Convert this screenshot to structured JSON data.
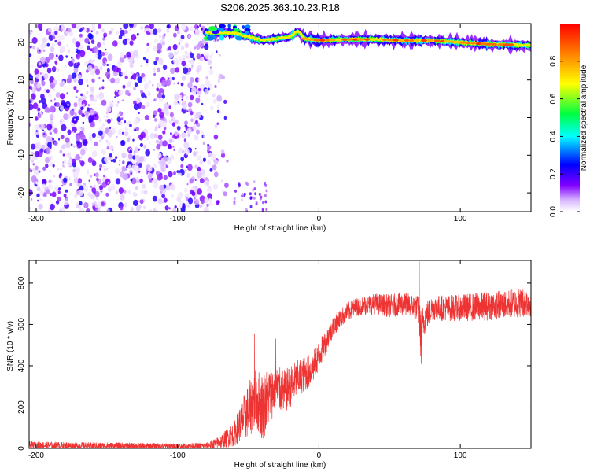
{
  "title": "S206.2025.363.10.23.R18",
  "chart_data": [
    {
      "type": "heatmap",
      "title": "S206.2025.363.10.23.R18",
      "xlabel": "Height of straight line (km)",
      "ylabel": "Frequency (Hz)",
      "xlim": [
        -205,
        150
      ],
      "ylim": [
        -25,
        25
      ],
      "x_ticks": [
        -200,
        -100,
        0,
        100
      ],
      "y_ticks": [
        -20,
        -10,
        0,
        10,
        20
      ],
      "colorbar": {
        "label": "Normalized spectral amplitude",
        "range": [
          0,
          1
        ],
        "ticks": [
          "0.0",
          "0.2",
          "0.4",
          "0.6",
          "0.8"
        ],
        "colormap": [
          "#ffffff",
          "#7f00ff",
          "#0000ff",
          "#00ffff",
          "#00ff00",
          "#ffff00",
          "#ff8000",
          "#ff0000"
        ]
      },
      "features": {
        "noise_region_x": [
          -205,
          -75
        ],
        "carrier_line": {
          "x": [
            -80,
            -70,
            -60,
            -50,
            -40,
            -30,
            -20,
            -15,
            -10,
            0,
            20,
            40,
            60,
            80,
            100,
            120,
            150
          ],
          "freq": [
            22.5,
            22.5,
            22.5,
            21.5,
            20.5,
            21.0,
            21.5,
            23.0,
            21.0,
            20.5,
            20.8,
            20.8,
            20.5,
            20.5,
            20.0,
            19.5,
            19.2
          ],
          "peak_amplitude": 0.95
        }
      }
    },
    {
      "type": "line",
      "xlabel": "Height of straight line (km)",
      "ylabel": "SNR (10 * v/v)",
      "xlim": [
        -205,
        150
      ],
      "ylim": [
        0,
        910
      ],
      "x_ticks": [
        -200,
        -100,
        0,
        100
      ],
      "y_ticks": [
        0,
        200,
        400,
        600,
        800
      ],
      "color": "#ee3333",
      "envelope": {
        "x": [
          -205,
          -150,
          -100,
          -80,
          -70,
          -60,
          -55,
          -50,
          -45,
          -40,
          -35,
          -30,
          -25,
          -20,
          -15,
          -10,
          -5,
          0,
          5,
          10,
          15,
          20,
          25,
          30,
          40,
          50,
          60,
          70,
          72,
          74,
          80,
          100,
          120,
          150
        ],
        "mean": [
          15,
          12,
          10,
          12,
          30,
          70,
          130,
          180,
          240,
          200,
          260,
          290,
          270,
          300,
          340,
          360,
          380,
          450,
          520,
          590,
          630,
          660,
          680,
          690,
          700,
          690,
          700,
          680,
          560,
          620,
          680,
          680,
          690,
          710
        ],
        "spread": [
          18,
          16,
          14,
          15,
          30,
          60,
          90,
          130,
          150,
          170,
          140,
          110,
          110,
          100,
          90,
          85,
          80,
          70,
          60,
          50,
          45,
          45,
          45,
          45,
          50,
          55,
          55,
          60,
          120,
          80,
          60,
          65,
          70,
          70
        ]
      },
      "spikes": [
        {
          "x": -45.5,
          "y": 555
        },
        {
          "x": -30.5,
          "y": 530
        },
        {
          "x": 71,
          "y": 905
        },
        {
          "x": 72.5,
          "y": 410
        }
      ]
    }
  ]
}
